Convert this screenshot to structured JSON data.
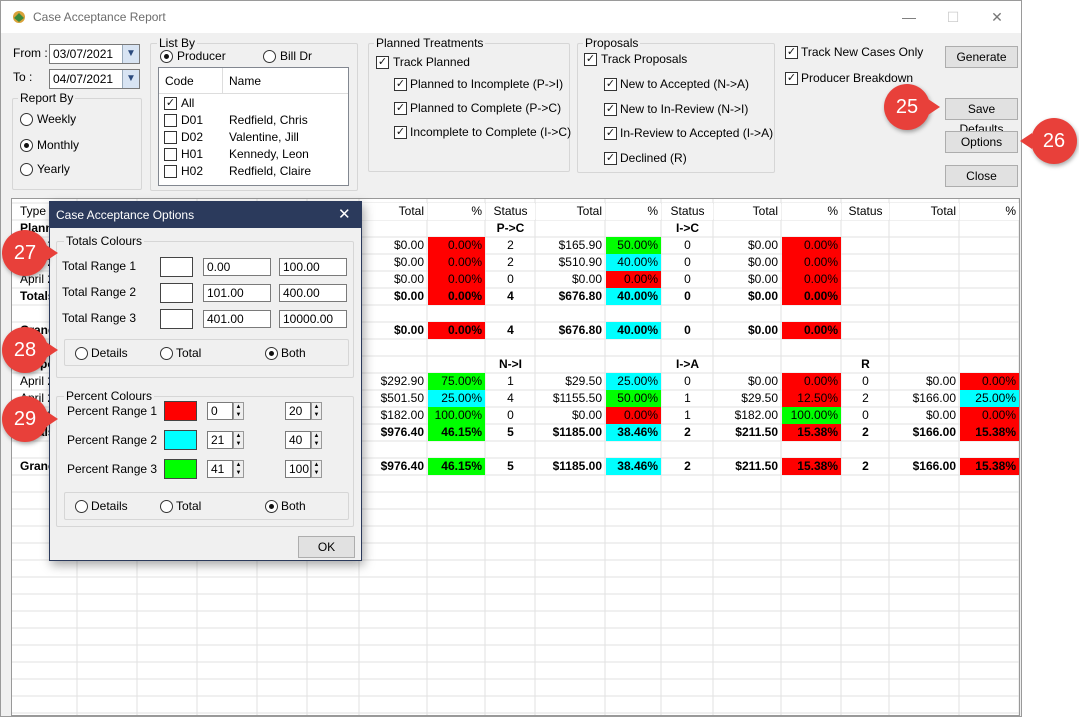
{
  "window": {
    "title": "Case Acceptance Report",
    "minimize": "—",
    "maximize": "☐",
    "close": "✕"
  },
  "date_range": {
    "from_label": "From :",
    "from_value": "03/07/2021",
    "to_label": "To :",
    "to_value": "04/07/2021"
  },
  "report_by": {
    "title": "Report By",
    "options": [
      "Weekly",
      "Monthly",
      "Yearly"
    ],
    "selected": "Monthly"
  },
  "list_by": {
    "title": "List By",
    "options": [
      "Producer",
      "Bill Dr"
    ],
    "selected": "Producer",
    "col_code": "Code",
    "col_name": "Name",
    "items": [
      {
        "code": "All",
        "name": "",
        "checked": true
      },
      {
        "code": "D01",
        "name": "Redfield, Chris",
        "checked": false
      },
      {
        "code": "D02",
        "name": "Valentine, Jill",
        "checked": false
      },
      {
        "code": "H01",
        "name": "Kennedy, Leon",
        "checked": false
      },
      {
        "code": "H02",
        "name": "Redfield, Claire",
        "checked": false
      }
    ]
  },
  "planned": {
    "title": "Planned Treatments",
    "track": "Track Planned",
    "items": [
      "Planned to Incomplete (P->I)",
      "Planned to Complete (P->C)",
      "Incomplete to Complete (I->C)"
    ]
  },
  "proposals": {
    "title": "Proposals",
    "track": "Track Proposals",
    "items": [
      "New to Accepted (N->A)",
      "New to In-Review (N->I)",
      "In-Review to Accepted (I->A)",
      "Declined (R)"
    ]
  },
  "options_right": {
    "track_new": "Track New Cases Only",
    "producer_breakdown": "Producer Breakdown"
  },
  "buttons": {
    "generate": "Generate",
    "save_defaults": "Save Defaults",
    "options": "Options",
    "close": "Close"
  },
  "grid": {
    "type_label": "Type",
    "headers": [
      "Total",
      "%",
      "Status",
      "Total",
      "%",
      "Status",
      "Total",
      "%",
      "Status",
      "Total",
      "%"
    ],
    "left_labels": [
      "Planned",
      "April 20",
      "April 20",
      "April 20",
      "Totals",
      "",
      "Grand",
      "",
      "Proposals",
      "April 20",
      "April 20",
      "April 20",
      "Totals",
      "",
      "Grand"
    ],
    "planned_groups": [
      "P->C",
      "I->C"
    ],
    "planned_rows": [
      [
        "$0.00",
        "0.00%",
        "2",
        "$165.90",
        "50.00%",
        "0",
        "$0.00",
        "0.00%"
      ],
      [
        "$0.00",
        "0.00%",
        "2",
        "$510.90",
        "40.00%",
        "0",
        "$0.00",
        "0.00%"
      ],
      [
        "$0.00",
        "0.00%",
        "0",
        "$0.00",
        "0.00%",
        "0",
        "$0.00",
        "0.00%"
      ]
    ],
    "planned_total": [
      "$0.00",
      "0.00%",
      "4",
      "$676.80",
      "40.00%",
      "0",
      "$0.00",
      "0.00%"
    ],
    "planned_grand": [
      "$0.00",
      "0.00%",
      "4",
      "$676.80",
      "40.00%",
      "0",
      "$0.00",
      "0.00%"
    ],
    "proposal_groups": [
      "N->I",
      "I->A",
      "R"
    ],
    "proposal_rows": [
      [
        "$292.90",
        "75.00%",
        "1",
        "$29.50",
        "25.00%",
        "0",
        "$0.00",
        "0.00%",
        "0",
        "$0.00",
        "0.00%"
      ],
      [
        "$501.50",
        "25.00%",
        "4",
        "$1155.50",
        "50.00%",
        "1",
        "$29.50",
        "12.50%",
        "2",
        "$166.00",
        "25.00%"
      ],
      [
        "$182.00",
        "100.00%",
        "0",
        "$0.00",
        "0.00%",
        "1",
        "$182.00",
        "100.00%",
        "0",
        "$0.00",
        "0.00%"
      ]
    ],
    "proposal_total": [
      "$976.40",
      "46.15%",
      "5",
      "$1185.00",
      "38.46%",
      "2",
      "$211.50",
      "15.38%",
      "2",
      "$166.00",
      "15.38%"
    ],
    "proposal_grand": [
      "$976.40",
      "46.15%",
      "5",
      "$1185.00",
      "38.46%",
      "2",
      "$211.50",
      "15.38%",
      "2",
      "$166.00",
      "15.38%"
    ],
    "colors": {
      "red": "#ff0000",
      "cyan": "#00ffff",
      "green": "#00ff00"
    }
  },
  "dialog": {
    "title": "Case Acceptance Options",
    "totals_title": "Totals Colours",
    "totals": [
      {
        "label": "Total Range 1",
        "min": "0.00",
        "max": "100.00",
        "color": "#ffffff"
      },
      {
        "label": "Total Range 2",
        "min": "101.00",
        "max": "400.00",
        "color": "#ffffff"
      },
      {
        "label": "Total Range 3",
        "min": "401.00",
        "max": "10000.00",
        "color": "#ffffff"
      }
    ],
    "totals_mode": [
      "Details",
      "Total",
      "Both"
    ],
    "percent_title": "Percent Colours",
    "percent": [
      {
        "label": "Percent Range 1",
        "min": "0",
        "max": "20",
        "color": "#ff0000"
      },
      {
        "label": "Percent Range 2",
        "min": "21",
        "max": "40",
        "color": "#00ffff"
      },
      {
        "label": "Percent Range 3",
        "min": "41",
        "max": "100",
        "color": "#00ff00"
      }
    ],
    "percent_mode": [
      "Details",
      "Total",
      "Both"
    ],
    "ok": "OK"
  },
  "callouts": [
    "25",
    "26",
    "27",
    "28",
    "29"
  ]
}
